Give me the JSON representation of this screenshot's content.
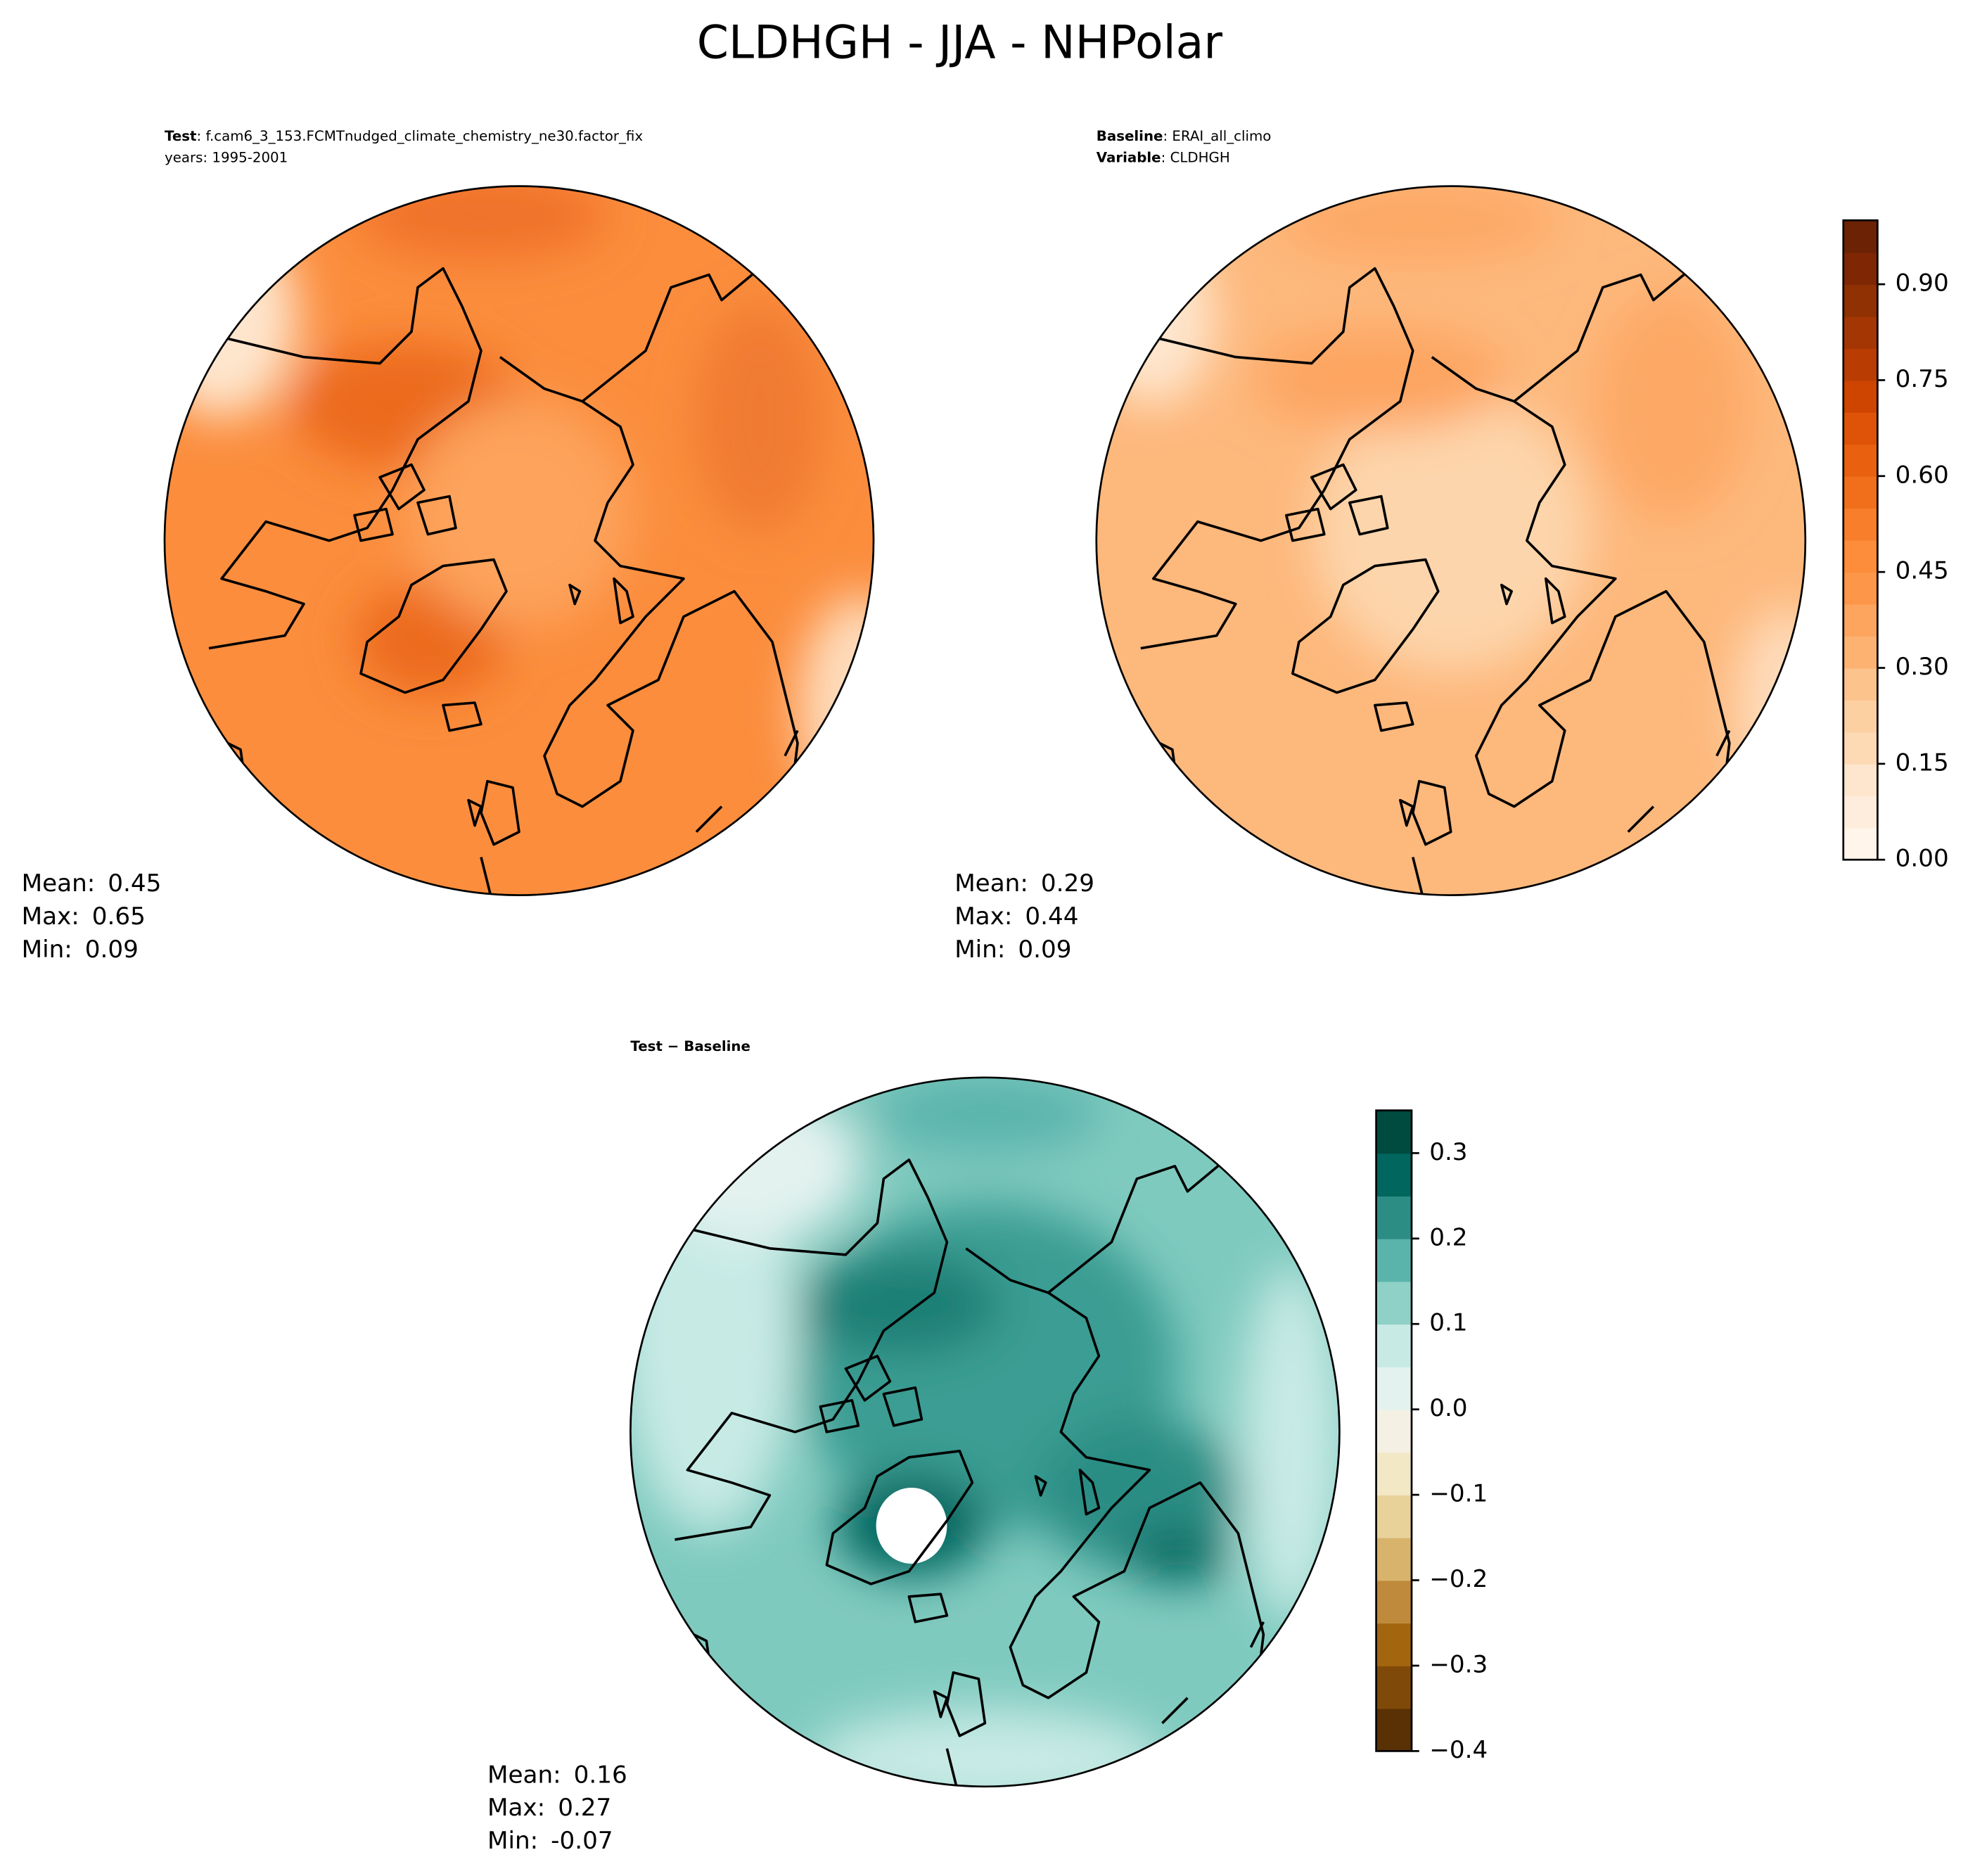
{
  "title": "CLDHGH - JJA - NHPolar",
  "panels": [
    {
      "header": [
        {
          "key": "Test",
          "text": ": f.cam6_3_153.FCMTnudged_climate_chemistry_ne30.factor_fix"
        },
        {
          "key": "",
          "text": "years: 1995-2001"
        }
      ],
      "stats": [
        {
          "label": "Mean:",
          "value": 0.45
        },
        {
          "label": "Max:",
          "value": 0.65
        },
        {
          "label": "Min:",
          "value": 0.09
        }
      ]
    },
    {
      "header": [
        {
          "key": "Baseline",
          "text": ": ERAI_all_climo"
        },
        {
          "key": "Variable",
          "text": ": CLDHGH"
        }
      ],
      "stats": [
        {
          "label": "Mean:",
          "value": 0.29
        },
        {
          "label": "Max:",
          "value": 0.44
        },
        {
          "label": "Min:",
          "value": 0.09
        }
      ]
    },
    {
      "header": [
        {
          "key": "Test − Baseline",
          "text": ""
        }
      ],
      "stats": [
        {
          "label": "Mean:",
          "value": 0.16
        },
        {
          "label": "Max:",
          "value": 0.27
        },
        {
          "label": "Min:",
          "value": -0.07
        }
      ]
    }
  ],
  "colorbars": [
    {
      "lim": [
        0,
        1
      ],
      "ticks": [
        {
          "value": 0,
          "label": "0.00"
        },
        {
          "value": 0.15,
          "label": "0.15"
        },
        {
          "value": 0.3,
          "label": "0.30"
        },
        {
          "value": 0.45,
          "label": "0.45"
        },
        {
          "value": 0.6,
          "label": "0.60"
        },
        {
          "value": 0.75,
          "label": "0.75"
        },
        {
          "value": 0.9,
          "label": "0.90"
        }
      ],
      "colors": [
        "#fff5eb",
        "#feeddc",
        "#fee6ce",
        "#fdd9b4",
        "#fdd0a2",
        "#fdc38d",
        "#fdb272",
        "#fda55f",
        "#fd9649",
        "#fd8c3b",
        "#f87e2b",
        "#f16f1a",
        "#e9610f",
        "#de5308",
        "#ce4401",
        "#b93d02",
        "#a33603",
        "#8f3103",
        "#7f2704",
        "#6c2204"
      ]
    },
    {
      "lim": [
        -0.4,
        0.35
      ],
      "ticks": [
        {
          "value": -0.4,
          "label": "−0.4"
        },
        {
          "value": -0.3,
          "label": "−0.3"
        },
        {
          "value": -0.2,
          "label": "−0.2"
        },
        {
          "value": -0.1,
          "label": "−0.1"
        },
        {
          "value": 0,
          "label": "0.0"
        },
        0.1,
        0.2,
        0.3
      ],
      "colors": [
        "#5a3005",
        "#7f4909",
        "#a3660f",
        "#bf8a3b",
        "#d7b36b",
        "#e8d29a",
        "#f3e8c6",
        "#f4f0e4",
        "#e3f2ef",
        "#c7eae5",
        "#8fd1c6",
        "#5ab4ac",
        "#2c8d84",
        "#01665e",
        "#004b40"
      ]
    }
  ]
}
